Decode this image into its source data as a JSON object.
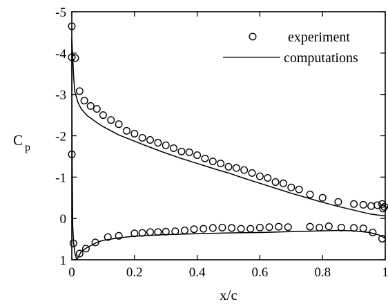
{
  "chart_data": {
    "type": "line",
    "title": "",
    "xlabel": "x/c",
    "ylabel": "C",
    "ylabel_subscript": "p",
    "xlim": [
      0,
      1
    ],
    "ylim": [
      1,
      -5
    ],
    "y_inverted": true,
    "grid": false,
    "legend_position": "top-right",
    "xticks": [
      0,
      0.2,
      0.4,
      0.6,
      0.8,
      1
    ],
    "xtick_labels": [
      "0",
      "0.2",
      "0.4",
      "0.6",
      "0.8",
      "1"
    ],
    "yticks": [
      -5,
      -4,
      -3,
      -2,
      -1,
      0,
      1
    ],
    "ytick_labels": [
      "-5",
      "-4",
      "-3",
      "-2",
      "-1",
      "0",
      "1"
    ],
    "series": [
      {
        "name": "experiment",
        "style": "open-circle",
        "color": "#000000",
        "points": [
          [
            0.0,
            -4.65
          ],
          [
            0.0,
            -3.9
          ],
          [
            0.011,
            -3.88
          ],
          [
            0.0,
            -1.55
          ],
          [
            0.025,
            -3.08
          ],
          [
            0.04,
            -2.85
          ],
          [
            0.06,
            -2.72
          ],
          [
            0.08,
            -2.65
          ],
          [
            0.1,
            -2.5
          ],
          [
            0.125,
            -2.38
          ],
          [
            0.15,
            -2.28
          ],
          [
            0.175,
            -2.12
          ],
          [
            0.2,
            -2.05
          ],
          [
            0.225,
            -1.95
          ],
          [
            0.25,
            -1.9
          ],
          [
            0.275,
            -1.83
          ],
          [
            0.3,
            -1.77
          ],
          [
            0.325,
            -1.7
          ],
          [
            0.35,
            -1.62
          ],
          [
            0.375,
            -1.6
          ],
          [
            0.4,
            -1.53
          ],
          [
            0.425,
            -1.45
          ],
          [
            0.45,
            -1.38
          ],
          [
            0.475,
            -1.33
          ],
          [
            0.5,
            -1.25
          ],
          [
            0.525,
            -1.22
          ],
          [
            0.55,
            -1.17
          ],
          [
            0.575,
            -1.1
          ],
          [
            0.6,
            -1.02
          ],
          [
            0.625,
            -0.98
          ],
          [
            0.65,
            -0.88
          ],
          [
            0.675,
            -0.85
          ],
          [
            0.7,
            -0.75
          ],
          [
            0.725,
            -0.7
          ],
          [
            0.76,
            -0.58
          ],
          [
            0.8,
            -0.5
          ],
          [
            0.85,
            -0.4
          ],
          [
            0.9,
            -0.35
          ],
          [
            0.93,
            -0.33
          ],
          [
            0.955,
            -0.3
          ],
          [
            0.975,
            -0.32
          ],
          [
            0.99,
            -0.35
          ],
          [
            0.997,
            -0.28
          ],
          [
            0.993,
            -0.24
          ],
          [
            0.005,
            0.6
          ],
          [
            0.025,
            0.85
          ],
          [
            0.045,
            0.73
          ],
          [
            0.075,
            0.58
          ],
          [
            0.115,
            0.45
          ],
          [
            0.15,
            0.42
          ],
          [
            0.2,
            0.36
          ],
          [
            0.225,
            0.35
          ],
          [
            0.25,
            0.33
          ],
          [
            0.275,
            0.33
          ],
          [
            0.3,
            0.32
          ],
          [
            0.33,
            0.31
          ],
          [
            0.36,
            0.29
          ],
          [
            0.39,
            0.26
          ],
          [
            0.42,
            0.25
          ],
          [
            0.45,
            0.23
          ],
          [
            0.48,
            0.22
          ],
          [
            0.51,
            0.23
          ],
          [
            0.54,
            0.25
          ],
          [
            0.57,
            0.25
          ],
          [
            0.6,
            0.22
          ],
          [
            0.63,
            0.21
          ],
          [
            0.66,
            0.2
          ],
          [
            0.69,
            0.21
          ],
          [
            0.76,
            0.2
          ],
          [
            0.79,
            0.22
          ],
          [
            0.82,
            0.19
          ],
          [
            0.86,
            0.22
          ],
          [
            0.9,
            0.23
          ],
          [
            0.93,
            0.24
          ],
          [
            0.96,
            0.34
          ],
          [
            0.99,
            0.49
          ]
        ]
      },
      {
        "name": "computations",
        "style": "solid-line",
        "color": "#000000",
        "upper": [
          [
            0.0,
            -4.35
          ],
          [
            0.003,
            -3.9
          ],
          [
            0.006,
            -3.4
          ],
          [
            0.01,
            -3.05
          ],
          [
            0.02,
            -2.8
          ],
          [
            0.03,
            -2.65
          ],
          [
            0.05,
            -2.48
          ],
          [
            0.08,
            -2.32
          ],
          [
            0.1,
            -2.22
          ],
          [
            0.15,
            -2.02
          ],
          [
            0.2,
            -1.87
          ],
          [
            0.25,
            -1.72
          ],
          [
            0.3,
            -1.58
          ],
          [
            0.35,
            -1.45
          ],
          [
            0.4,
            -1.33
          ],
          [
            0.45,
            -1.21
          ],
          [
            0.5,
            -1.1
          ],
          [
            0.55,
            -0.97
          ],
          [
            0.6,
            -0.85
          ],
          [
            0.65,
            -0.73
          ],
          [
            0.7,
            -0.61
          ],
          [
            0.75,
            -0.5
          ],
          [
            0.8,
            -0.39
          ],
          [
            0.85,
            -0.29
          ],
          [
            0.9,
            -0.2
          ],
          [
            0.95,
            -0.11
          ],
          [
            1.0,
            -0.06
          ]
        ],
        "lower": [
          [
            0.0,
            -4.35
          ],
          [
            0.001,
            -1.5
          ],
          [
            0.003,
            0.2
          ],
          [
            0.006,
            0.6
          ],
          [
            0.01,
            0.85
          ],
          [
            0.016,
            1.0
          ],
          [
            0.03,
            0.8
          ],
          [
            0.05,
            0.7
          ],
          [
            0.08,
            0.58
          ],
          [
            0.1,
            0.53
          ],
          [
            0.15,
            0.47
          ],
          [
            0.2,
            0.43
          ],
          [
            0.3,
            0.39
          ],
          [
            0.4,
            0.37
          ],
          [
            0.5,
            0.35
          ],
          [
            0.6,
            0.34
          ],
          [
            0.7,
            0.32
          ],
          [
            0.8,
            0.3
          ],
          [
            0.85,
            0.29
          ],
          [
            0.9,
            0.3
          ],
          [
            0.95,
            0.34
          ],
          [
            0.98,
            0.4
          ],
          [
            1.0,
            0.48
          ]
        ]
      }
    ]
  }
}
